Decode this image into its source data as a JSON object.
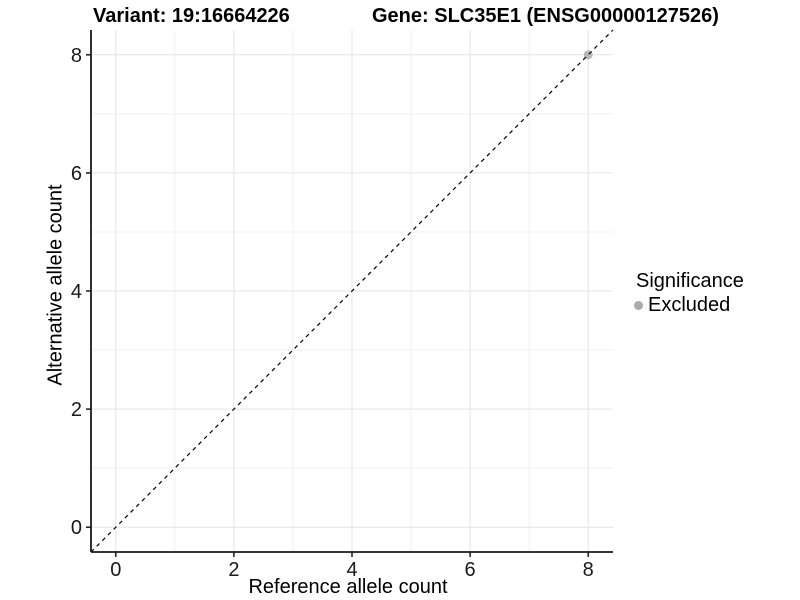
{
  "header": {
    "variant_title": "Variant: 19:16664226",
    "gene_title": "Gene: SLC35E1 (ENSG00000127526)"
  },
  "legend": {
    "title": "Significance",
    "items": [
      {
        "label": "Excluded",
        "color": "#aaaaaa"
      }
    ]
  },
  "colors": {
    "background": "#ffffff",
    "grid_major": "#e4e4e4",
    "grid_minor": "#f0f0f0",
    "axis_line": "#1a1a1a",
    "tick_text": "#1a1a1a",
    "reference_line": "#000000",
    "point_fill": "#b3b3b3"
  },
  "chart_data": {
    "type": "scatter",
    "title": "Variant: 19:16664226   Gene: SLC35E1 (ENSG00000127526)",
    "xlabel": "Reference allele count",
    "ylabel": "Alternative allele count",
    "xlim": [
      -0.42,
      8.42
    ],
    "ylim": [
      -0.42,
      8.42
    ],
    "x_ticks": [
      0,
      2,
      4,
      6,
      8
    ],
    "y_ticks": [
      0,
      2,
      4,
      6,
      8
    ],
    "x_minor_ticks": [
      1,
      3,
      5,
      7
    ],
    "y_minor_ticks": [
      1,
      3,
      5,
      7
    ],
    "grid": true,
    "legend_position": "right",
    "series": [
      {
        "name": "Excluded",
        "color": "#b3b3b3",
        "points": [
          {
            "x": 8,
            "y": 8
          }
        ]
      }
    ],
    "reference_line": {
      "slope": 1,
      "intercept": 0,
      "linetype": "dashed",
      "color": "#000000"
    }
  }
}
